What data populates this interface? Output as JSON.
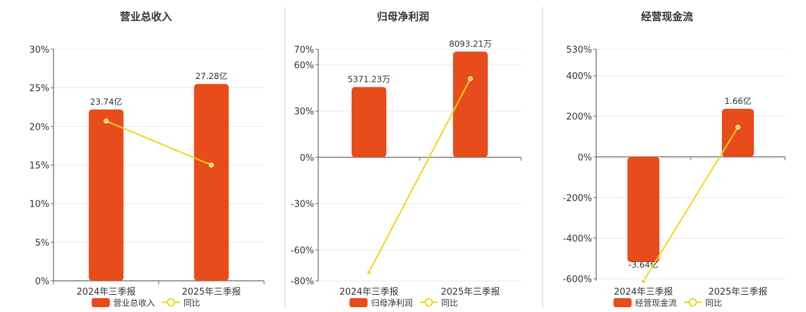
{
  "chart_data": [
    {
      "type": "bar",
      "title": "营业总收入",
      "categories": [
        "2024年三季报",
        "2025年三季报"
      ],
      "series": [
        {
          "name": "营业总收入",
          "kind": "bar",
          "data_labels": [
            "23.74亿",
            "27.28亿"
          ]
        },
        {
          "name": "同比",
          "kind": "line",
          "values": [
            20.7,
            15.0
          ]
        }
      ],
      "ylim": [
        0,
        30
      ],
      "yticks": [
        "0%",
        "5%",
        "10%",
        "15%",
        "20%",
        "25%",
        "30%"
      ],
      "ytick_values": [
        0,
        5,
        10,
        15,
        20,
        25,
        30
      ],
      "bar_axis_values": [
        22.2,
        25.5
      ],
      "colors": {
        "bar": "#e84c1a",
        "line": "#f2d41b"
      },
      "grid": true,
      "legend_position": "bottom"
    },
    {
      "type": "bar",
      "title": "归母净利润",
      "categories": [
        "2024年三季报",
        "2025年三季报"
      ],
      "series": [
        {
          "name": "归母净利润",
          "kind": "bar",
          "data_labels": [
            "5371.23万",
            "8093.21万"
          ]
        },
        {
          "name": "同比",
          "kind": "line",
          "values": [
            -74.4,
            50.9
          ]
        }
      ],
      "ylim": [
        -80,
        70
      ],
      "yticks": [
        "-80%",
        "-60%",
        "-30%",
        "0%",
        "30%",
        "60%",
        "70%"
      ],
      "ytick_values": [
        -80,
        -60,
        -30,
        0,
        30,
        60,
        70
      ],
      "bar_axis_values": [
        45.5,
        68.5
      ],
      "colors": {
        "bar": "#e84c1a",
        "line": "#f2d41b"
      },
      "grid": true,
      "legend_position": "bottom"
    },
    {
      "type": "bar",
      "title": "经营现金流",
      "categories": [
        "2024年三季报",
        "2025年三季报"
      ],
      "series": [
        {
          "name": "经营现金流",
          "kind": "bar",
          "data_labels": [
            "-3.64亿",
            "1.66亿"
          ]
        },
        {
          "name": "同比",
          "kind": "line",
          "values": [
            -612,
            146
          ]
        }
      ],
      "ylim": [
        -610,
        530
      ],
      "yticks": [
        "-600%",
        "-400%",
        "-200%",
        "0%",
        "200%",
        "400%",
        "530%"
      ],
      "ytick_values": [
        -600,
        -400,
        -200,
        0,
        200,
        400,
        530
      ],
      "bar_axis_values": [
        -518,
        237
      ],
      "colors": {
        "bar": "#e84c1a",
        "line": "#f2d41b"
      },
      "grid": true,
      "legend_position": "bottom"
    }
  ]
}
